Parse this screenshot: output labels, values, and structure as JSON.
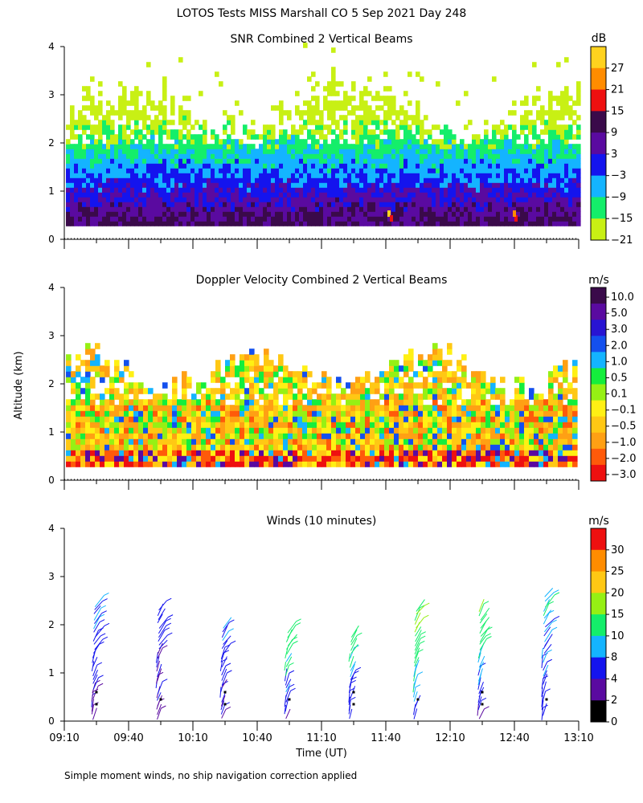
{
  "figure": {
    "title": "LOTOS Tests MISS Marshall CO   5 Sep 2021 Day 248",
    "ylabel": "Altitude (km)",
    "xlabel": "Time (UT)",
    "footnote": "Simple moment winds, no ship navigation correction applied"
  },
  "chart_data": [
    {
      "type": "heatmap",
      "id": "snr",
      "title": "SNR Combined 2 Vertical Beams",
      "xlim": [
        0,
        240
      ],
      "ylim": [
        0,
        4
      ],
      "yticks": [
        "0",
        "1",
        "2",
        "3",
        "4"
      ],
      "ylabel": "Altitude (km)",
      "colorbar": {
        "unit": "dB",
        "labels": [
          "27",
          "21",
          "15",
          "9",
          "3",
          "−3",
          "−9",
          "−15",
          "−21"
        ],
        "colors": [
          "#ffd21e",
          "#ff8c00",
          "#ee1010",
          "#3a0a4a",
          "#5a0aa0",
          "#1414ee",
          "#14b4ff",
          "#14ee6a",
          "#c8f014"
        ]
      },
      "profile": [
        {
          "alt_km": 0.4,
          "dB": 6
        },
        {
          "alt_km": 0.8,
          "dB": 0
        },
        {
          "alt_km": 1.2,
          "dB": -6
        },
        {
          "alt_km": 1.6,
          "dB": -12
        },
        {
          "alt_km": 2.0,
          "dB": -18
        },
        {
          "alt_km": 2.6,
          "dB": -21
        }
      ]
    },
    {
      "type": "heatmap",
      "id": "doppler",
      "title": "Doppler Velocity Combined 2 Vertical Beams",
      "xlim": [
        0,
        240
      ],
      "ylim": [
        0,
        4
      ],
      "yticks": [
        "0",
        "1",
        "2",
        "3",
        "4"
      ],
      "ylabel": "Altitude (km)",
      "colorbar": {
        "unit": "m/s",
        "labels": [
          "10.0",
          "5.0",
          "3.0",
          "2.0",
          "1.0",
          "0.5",
          "0.1",
          "−0.1",
          "−0.5",
          "−1.0",
          "−2.0",
          "−3.0"
        ],
        "colors": [
          "#3a0a4a",
          "#5a0aa0",
          "#2814d2",
          "#1450ee",
          "#14b4ff",
          "#14ee3c",
          "#96f014",
          "#fff014",
          "#ffc814",
          "#ffa014",
          "#ff5a0a",
          "#ee1010"
        ]
      },
      "profile": [
        {
          "alt_km": 0.5,
          "m_s": -0.5
        },
        {
          "alt_km": 1.0,
          "m_s": -0.5
        },
        {
          "alt_km": 1.5,
          "m_s": -0.1
        },
        {
          "alt_km": 2.0,
          "m_s": 0.1
        },
        {
          "alt_km": 2.4,
          "m_s": -0.5
        }
      ]
    },
    {
      "type": "scatter",
      "id": "winds",
      "title": "Winds (10 minutes)",
      "xlim": [
        0,
        240
      ],
      "ylim": [
        0,
        4
      ],
      "yticks": [
        "0",
        "1",
        "2",
        "3",
        "4"
      ],
      "xticks": [
        "09:10",
        "09:40",
        "10:10",
        "10:40",
        "11:10",
        "11:40",
        "12:10",
        "12:40",
        "13:10"
      ],
      "xlabel": "Time (UT)",
      "colorbar": {
        "unit": "m/s",
        "labels": [
          "30",
          "25",
          "20",
          "15",
          "10",
          "8",
          "4",
          "2",
          "0"
        ],
        "colors": [
          "#ee1010",
          "#ff8c00",
          "#ffc814",
          "#96f014",
          "#14ee6a",
          "#14b4ff",
          "#1414ee",
          "#5a0aa0",
          "#000000"
        ]
      },
      "profiles": [
        {
          "time_min": 15,
          "top_km": 2.5,
          "speed_low": 3,
          "speed_high": 9
        },
        {
          "time_min": 45,
          "top_km": 2.4,
          "speed_low": 3,
          "speed_high": 6
        },
        {
          "time_min": 75,
          "top_km": 2.1,
          "speed_low": 3,
          "speed_high": 8
        },
        {
          "time_min": 105,
          "top_km": 2.0,
          "speed_low": 4,
          "speed_high": 14
        },
        {
          "time_min": 135,
          "top_km": 1.9,
          "speed_low": 5,
          "speed_high": 12
        },
        {
          "time_min": 165,
          "top_km": 2.4,
          "speed_low": 6,
          "speed_high": 16
        },
        {
          "time_min": 195,
          "top_km": 2.4,
          "speed_low": 3,
          "speed_high": 15
        },
        {
          "time_min": 225,
          "top_km": 2.7,
          "speed_low": 5,
          "speed_high": 10
        }
      ]
    }
  ]
}
